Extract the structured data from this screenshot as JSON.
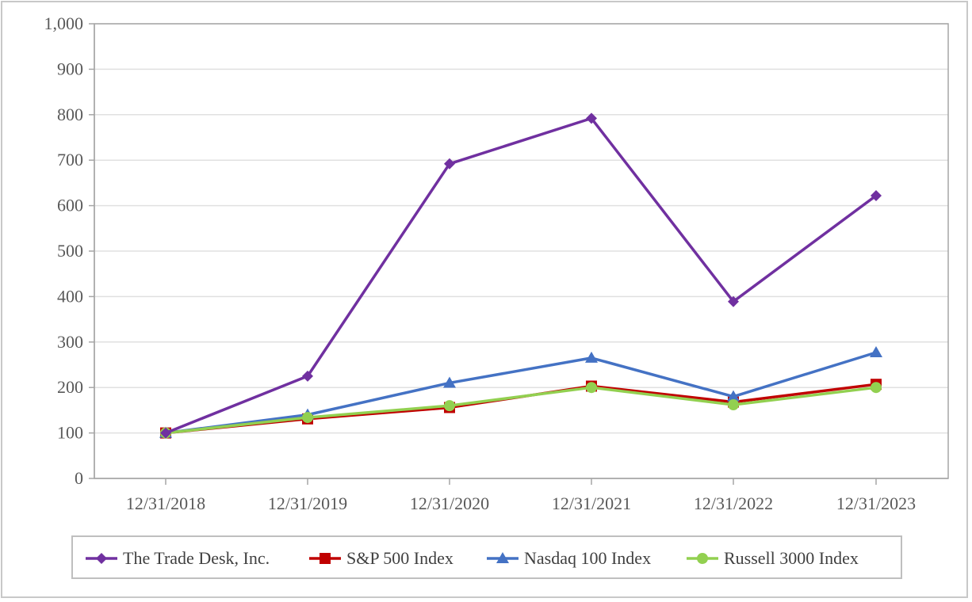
{
  "chart_data": {
    "type": "line",
    "title": "",
    "xlabel": "",
    "ylabel": "",
    "categories": [
      "12/31/2018",
      "12/31/2019",
      "12/31/2020",
      "12/31/2021",
      "12/31/2022",
      "12/31/2023"
    ],
    "ylim": [
      0,
      1000
    ],
    "yticks": [
      0,
      100,
      200,
      300,
      400,
      500,
      600,
      700,
      800,
      900,
      1000
    ],
    "ytick_labels": [
      "0",
      "100",
      "200",
      "300",
      "400",
      "500",
      "600",
      "700",
      "800",
      "900",
      "1,000"
    ],
    "grid": true,
    "legend_position": "bottom",
    "series": [
      {
        "name": "The Trade Desk, Inc.",
        "color": "#7030a0",
        "marker": "diamond",
        "values": [
          100,
          225,
          692,
          792,
          389,
          622
        ]
      },
      {
        "name": "S&P 500 Index",
        "color": "#c00000",
        "marker": "square",
        "values": [
          100,
          131,
          156,
          203,
          168,
          207
        ]
      },
      {
        "name": "Nasdaq 100 Index",
        "color": "#4472c4",
        "marker": "triangle",
        "values": [
          100,
          140,
          210,
          265,
          180,
          277
        ]
      },
      {
        "name": "Russell 3000 Index",
        "color": "#92d050",
        "marker": "circle",
        "values": [
          100,
          134,
          160,
          200,
          162,
          200
        ]
      }
    ]
  }
}
